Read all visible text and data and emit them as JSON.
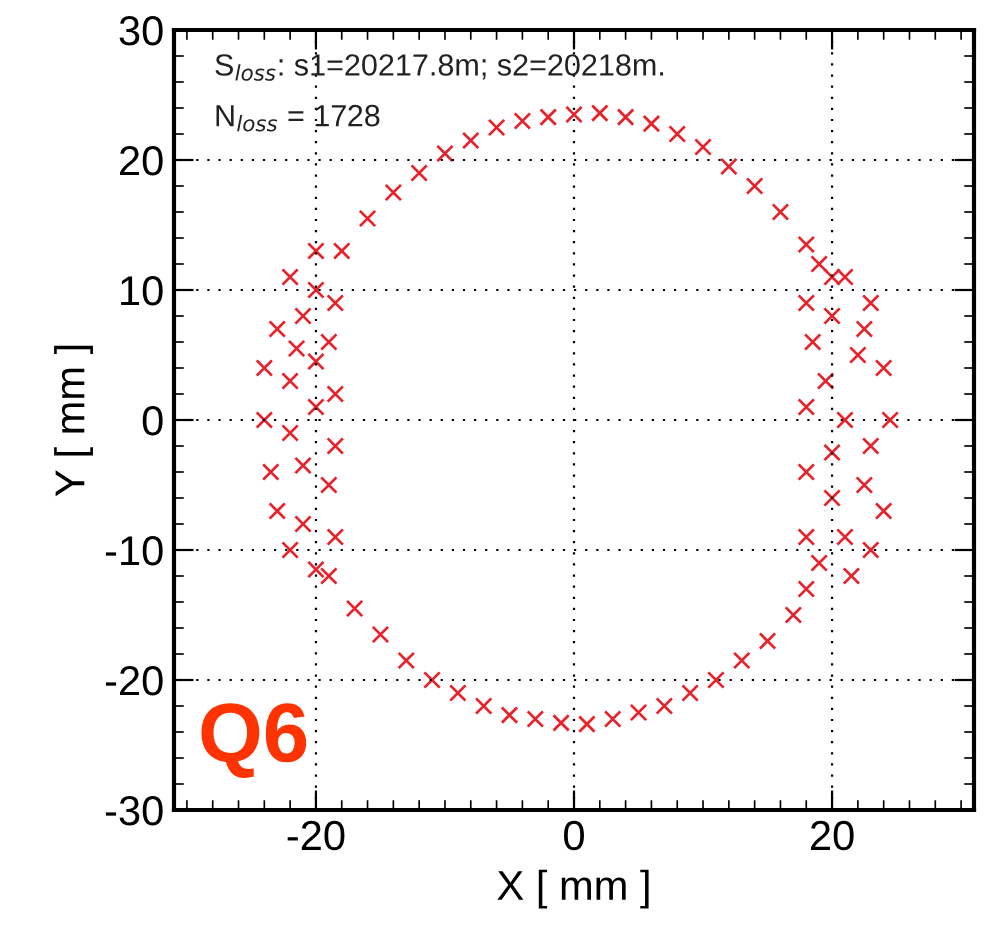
{
  "chart_data": {
    "type": "scatter",
    "xlabel": "X [ mm ]",
    "ylabel": "Y [ mm ]",
    "annotations": [
      "S$_{loss}$: s1=20217.8m; s2=20218m.",
      "N$_{loss}$ = 1728",
      "Q6"
    ],
    "xlim": [
      -31,
      31
    ],
    "ylim": [
      -30,
      30
    ],
    "xticks": [
      -20,
      0,
      20
    ],
    "yticks": [
      -30,
      -20,
      -10,
      0,
      10,
      20,
      30
    ],
    "grid": true,
    "legend": false,
    "marker": "cross",
    "series": [
      {
        "color": "#e8222a",
        "x": [
          -18,
          -16,
          -14,
          -12,
          -10,
          -8,
          -6,
          -4,
          -2,
          0,
          2,
          4,
          6,
          8,
          10,
          12,
          14,
          16,
          18,
          20,
          -19,
          -17,
          -15,
          -13,
          -11,
          -9,
          -7,
          -5,
          -3,
          -1,
          1,
          3,
          5,
          7,
          9,
          11,
          13,
          15,
          17,
          18,
          -22,
          -20,
          -18.5,
          -23,
          -21,
          -19,
          -24,
          -22,
          -20,
          -18.5,
          -24,
          -22,
          -20,
          -18.5,
          -23.5,
          -21,
          -19,
          -23,
          -21,
          -18.5,
          -22,
          -20,
          -20,
          -21.5,
          19,
          21,
          18,
          20,
          22.5,
          24,
          22,
          19.5,
          18,
          21,
          24.5,
          23,
          20,
          18,
          22.5,
          20,
          24,
          18,
          21,
          23,
          19,
          21.5,
          18.5,
          23
        ],
        "values": [
          13,
          15.5,
          17.5,
          19,
          20.5,
          21.5,
          22.5,
          23,
          23.3,
          23.5,
          23.6,
          23.3,
          22.8,
          22,
          21,
          19.5,
          18,
          16,
          13.5,
          11,
          -12,
          -14.5,
          -16.5,
          -18.5,
          -20,
          -21,
          -22,
          -22.7,
          -23,
          -23.3,
          -23.4,
          -23,
          -22.5,
          -22,
          -21,
          -20,
          -18.5,
          -17,
          -15,
          -13,
          11,
          10,
          9,
          7,
          8,
          6,
          4,
          3,
          4.5,
          2,
          0,
          -1,
          1,
          -2,
          -4,
          -3.5,
          -5,
          -7,
          -8,
          -9,
          -10,
          -11.5,
          13,
          5.5,
          12,
          11,
          9,
          8,
          7,
          4,
          5,
          3,
          1,
          0,
          0,
          -2,
          -2.5,
          -4,
          -5,
          -6,
          -7,
          -9,
          -9,
          -10,
          -11,
          -12,
          6,
          9
        ]
      }
    ]
  }
}
